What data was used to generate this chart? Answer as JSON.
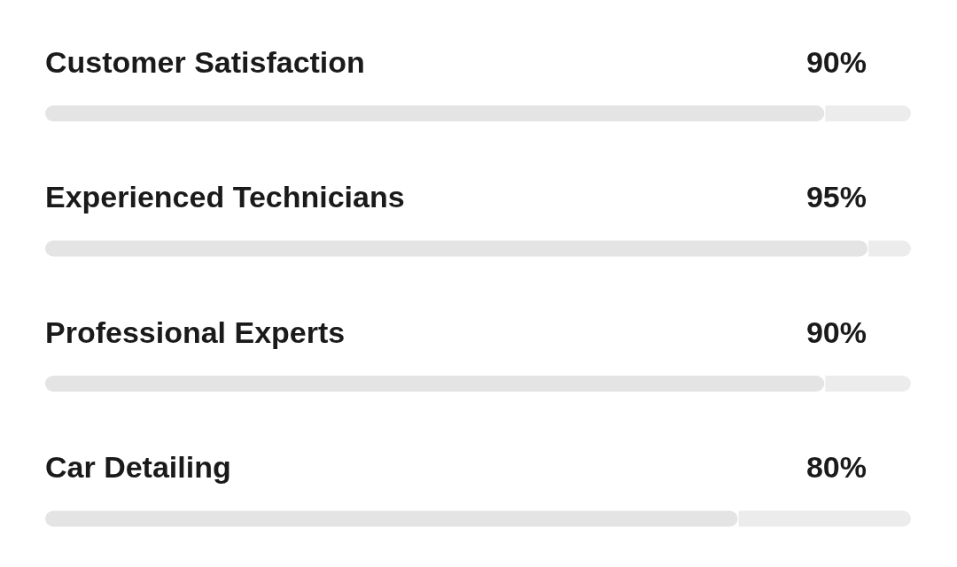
{
  "chart_data": {
    "type": "bar",
    "orientation": "horizontal",
    "categories": [
      "Customer Satisfaction",
      "Experienced Technicians",
      "Professional Experts",
      "Car Detailing"
    ],
    "values": [
      90,
      95,
      90,
      80
    ],
    "value_labels": [
      "90%",
      "95%",
      "90%",
      "80%"
    ],
    "color": "#e4e4e4",
    "xlim": [
      0,
      100
    ],
    "tick_labels": "y"
  }
}
